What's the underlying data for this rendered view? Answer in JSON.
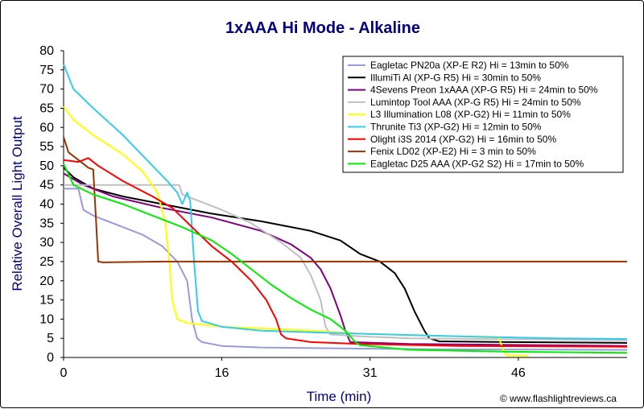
{
  "chart_data": {
    "type": "line",
    "title": "1xAAA Hi Mode - Alkaline",
    "xlabel": "Time (min)",
    "ylabel": "Relative Overall Light Output",
    "xlim": [
      0,
      57
    ],
    "ylim": [
      0,
      80
    ],
    "xticks": [
      0,
      16,
      31,
      46
    ],
    "yticks": [
      0,
      5,
      10,
      15,
      20,
      25,
      30,
      35,
      40,
      45,
      50,
      55,
      60,
      65,
      70,
      75,
      80
    ],
    "grid": false,
    "legend_position": "top-right",
    "credit": "© www.flashlightreviews.ca",
    "series": [
      {
        "name": "Eagletac PN20a (XP-E R2) Hi = 13min to 50%",
        "color": "#9999dd",
        "points": [
          [
            0,
            44
          ],
          [
            1.5,
            44
          ],
          [
            2,
            38.5
          ],
          [
            3,
            37
          ],
          [
            5,
            35
          ],
          [
            8,
            32
          ],
          [
            10,
            29
          ],
          [
            11.5,
            25
          ],
          [
            12.5,
            20
          ],
          [
            13,
            10
          ],
          [
            13.5,
            5
          ],
          [
            14,
            4
          ],
          [
            16,
            3
          ],
          [
            20,
            2.6
          ],
          [
            30,
            2.3
          ],
          [
            40,
            2.1
          ],
          [
            57,
            2
          ]
        ]
      },
      {
        "name": "IllumiTi Al (XP-G R5) Hi = 30min to 50%",
        "color": "#000000",
        "points": [
          [
            0,
            49.5
          ],
          [
            1,
            47
          ],
          [
            3,
            44
          ],
          [
            6,
            42
          ],
          [
            10,
            40
          ],
          [
            15,
            37.5
          ],
          [
            20,
            35.5
          ],
          [
            25,
            33
          ],
          [
            28,
            30.5
          ],
          [
            30,
            27
          ],
          [
            32,
            25
          ],
          [
            33.5,
            22
          ],
          [
            34.5,
            18
          ],
          [
            35.5,
            12
          ],
          [
            36.5,
            7
          ],
          [
            37,
            5
          ],
          [
            38,
            4.2
          ],
          [
            45,
            4
          ],
          [
            57,
            3.8
          ]
        ]
      },
      {
        "name": "4Sevens Preon 1xAAA (XP-G R5) Hi = 24min to 50%",
        "color": "#800080",
        "points": [
          [
            0,
            48
          ],
          [
            2,
            45
          ],
          [
            5,
            42
          ],
          [
            10,
            39
          ],
          [
            15,
            36.5
          ],
          [
            20,
            33
          ],
          [
            23,
            29.5
          ],
          [
            25,
            26
          ],
          [
            26,
            23
          ],
          [
            27,
            18
          ],
          [
            28,
            11
          ],
          [
            28.5,
            7
          ],
          [
            29,
            4
          ],
          [
            35,
            3.5
          ],
          [
            57,
            3
          ]
        ]
      },
      {
        "name": "Lumintop Tool AAA (XP-G R5) Hi = 24min to 50%",
        "color": "#c0c0c0",
        "points": [
          [
            0,
            45
          ],
          [
            5,
            45
          ],
          [
            11.7,
            45
          ],
          [
            12,
            42.5
          ],
          [
            14,
            40.5
          ],
          [
            16,
            38.5
          ],
          [
            19,
            35
          ],
          [
            22,
            30
          ],
          [
            24,
            26
          ],
          [
            25,
            21.5
          ],
          [
            26,
            15
          ],
          [
            26.5,
            8
          ],
          [
            27,
            6
          ],
          [
            30,
            5.5
          ],
          [
            35,
            5
          ],
          [
            57,
            4.5
          ]
        ]
      },
      {
        "name": "L3 Illumination L08 (XP-G2) Hi = 11min to 50%",
        "color": "#ffff00",
        "points": [
          [
            0,
            65.5
          ],
          [
            1,
            62
          ],
          [
            3,
            58
          ],
          [
            6,
            53
          ],
          [
            8,
            48.5
          ],
          [
            9.5,
            43
          ],
          [
            10.3,
            35
          ],
          [
            10.7,
            25
          ],
          [
            11,
            15
          ],
          [
            11.5,
            10
          ],
          [
            12.5,
            9
          ],
          [
            16,
            8
          ],
          [
            25,
            7
          ],
          [
            30,
            6.2
          ],
          [
            40,
            5.5
          ],
          [
            44,
            5.2
          ],
          [
            44.4,
            2.5
          ],
          [
            44.8,
            0.5
          ],
          [
            46,
            0.5
          ],
          [
            47,
            0.4
          ]
        ]
      },
      {
        "name": "Thrunite Ti3 (XP-G2) Hi = 12min to 50%",
        "color": "#33ccee",
        "points": [
          [
            0,
            76.5
          ],
          [
            1,
            70
          ],
          [
            3,
            65
          ],
          [
            6,
            58
          ],
          [
            9,
            50
          ],
          [
            10.5,
            46
          ],
          [
            11.5,
            43
          ],
          [
            12,
            40
          ],
          [
            12.5,
            43
          ],
          [
            12.8,
            41
          ],
          [
            13.2,
            25
          ],
          [
            13.6,
            12
          ],
          [
            14,
            9.5
          ],
          [
            16,
            8
          ],
          [
            20,
            7
          ],
          [
            30,
            6.2
          ],
          [
            40,
            5.5
          ],
          [
            50,
            5
          ],
          [
            57,
            4.8
          ]
        ]
      },
      {
        "name": "Olight i3S 2014 (XP-G2) Hi = 16min to 50%",
        "color": "#ff0000",
        "points": [
          [
            0,
            51.5
          ],
          [
            1.5,
            51
          ],
          [
            2.5,
            52
          ],
          [
            3.5,
            50
          ],
          [
            6,
            46
          ],
          [
            9,
            42
          ],
          [
            11,
            39
          ],
          [
            13,
            34
          ],
          [
            15,
            29
          ],
          [
            17,
            25
          ],
          [
            19,
            20
          ],
          [
            20.5,
            15
          ],
          [
            21.5,
            10
          ],
          [
            22,
            6
          ],
          [
            22.5,
            5
          ],
          [
            25,
            4
          ],
          [
            30,
            3.5
          ],
          [
            40,
            3
          ],
          [
            57,
            2.8
          ]
        ]
      },
      {
        "name": "Fenix LD02 (XP-E2) Hi = 3 min to 50%",
        "color": "#993300",
        "points": [
          [
            0,
            57.5
          ],
          [
            0.5,
            53.5
          ],
          [
            1.5,
            51.5
          ],
          [
            2.5,
            49.5
          ],
          [
            3,
            49
          ],
          [
            3.3,
            35
          ],
          [
            3.5,
            25
          ],
          [
            4,
            24.8
          ],
          [
            10,
            25
          ],
          [
            20,
            25
          ],
          [
            30,
            25
          ],
          [
            40,
            25
          ],
          [
            50,
            25
          ],
          [
            57,
            25
          ]
        ]
      },
      {
        "name": "Eagletac D25 AAA (XP-G2 S2) Hi = 17min to 50%",
        "color": "#00ee00",
        "points": [
          [
            0,
            50.5
          ],
          [
            1,
            45
          ],
          [
            3,
            42.5
          ],
          [
            6,
            40
          ],
          [
            9,
            37
          ],
          [
            12,
            34
          ],
          [
            15,
            30.5
          ],
          [
            17,
            27
          ],
          [
            19,
            23
          ],
          [
            21,
            19
          ],
          [
            23,
            15.5
          ],
          [
            25,
            12.5
          ],
          [
            27,
            10
          ],
          [
            28.5,
            7
          ],
          [
            29.5,
            4
          ],
          [
            30,
            3.2
          ],
          [
            35,
            2
          ],
          [
            45,
            1.5
          ],
          [
            57,
            1.2
          ]
        ]
      }
    ]
  }
}
